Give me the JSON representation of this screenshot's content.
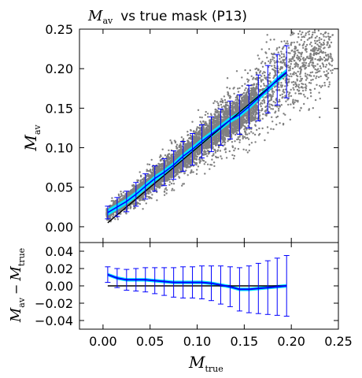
{
  "chart_data": [
    {
      "type": "scatter",
      "title": {
        "symbol": "M",
        "subscript": "av",
        "text": "vs true mask (P13)"
      },
      "xlabel": "",
      "ylabel": {
        "symbol": "M",
        "subscript": "av"
      },
      "xlim": [
        -0.025,
        0.25
      ],
      "ylim": [
        -0.02,
        0.25
      ],
      "xticks": [
        0.0,
        0.05,
        0.1,
        0.15,
        0.2,
        0.25
      ],
      "yticks": [
        0.0,
        0.05,
        0.1,
        0.15,
        0.2,
        0.25
      ],
      "ytick_labels": [
        "0.00",
        "0.05",
        "0.10",
        "0.15",
        "0.20",
        "0.25"
      ],
      "grid": false,
      "colors": {
        "scatter": "#808080",
        "mean_band": "#00e5ff",
        "mean_line": "#0000ff",
        "identity": "#000000",
        "errorbar": "#0000ff"
      },
      "series": [
        {
          "x": [
            0.005,
            0.015,
            0.025,
            0.035,
            0.045,
            0.055,
            0.065,
            0.075,
            0.085,
            0.095,
            0.105,
            0.115,
            0.125,
            0.135,
            0.145,
            0.155,
            0.165,
            0.175,
            0.185,
            0.195
          ],
          "y": [
            0.018,
            0.025,
            0.032,
            0.041,
            0.051,
            0.061,
            0.069,
            0.078,
            0.089,
            0.098,
            0.108,
            0.117,
            0.126,
            0.135,
            0.142,
            0.152,
            0.163,
            0.174,
            0.186,
            0.196
          ],
          "yerr": [
            0.008,
            0.012,
            0.013,
            0.015,
            0.016,
            0.016,
            0.017,
            0.018,
            0.019,
            0.02,
            0.021,
            0.022,
            0.023,
            0.024,
            0.025,
            0.027,
            0.029,
            0.03,
            0.032,
            0.033
          ]
        }
      ]
    },
    {
      "type": "line",
      "xlabel": {
        "symbol": "M",
        "subscript": "true"
      },
      "ylabel": {
        "symbol_a": "M",
        "subscript_a": "av",
        "operator": "−",
        "symbol_b": "M",
        "subscript_b": "true"
      },
      "xlim": [
        -0.025,
        0.25
      ],
      "ylim": [
        -0.05,
        0.05
      ],
      "xticks": [
        0.0,
        0.05,
        0.1,
        0.15,
        0.2,
        0.25
      ],
      "xtick_labels": [
        "0.00",
        "0.05",
        "0.10",
        "0.15",
        "0.20",
        "0.25"
      ],
      "yticks": [
        -0.04,
        -0.02,
        0.0,
        0.02,
        0.04
      ],
      "ytick_labels": [
        "−0.04",
        "−0.02",
        "0.00",
        "0.02",
        "0.04"
      ],
      "grid": false,
      "series": [
        {
          "x": [
            0.005,
            0.015,
            0.025,
            0.035,
            0.045,
            0.055,
            0.065,
            0.075,
            0.085,
            0.095,
            0.105,
            0.115,
            0.125,
            0.135,
            0.145,
            0.155,
            0.165,
            0.175,
            0.185,
            0.195
          ],
          "y": [
            0.013,
            0.009,
            0.007,
            0.007,
            0.007,
            0.006,
            0.005,
            0.004,
            0.004,
            0.004,
            0.004,
            0.003,
            0.001,
            -0.001,
            -0.004,
            -0.004,
            -0.003,
            -0.002,
            -0.001,
            0.0
          ],
          "yerr": [
            0.009,
            0.011,
            0.012,
            0.013,
            0.014,
            0.015,
            0.016,
            0.017,
            0.018,
            0.018,
            0.019,
            0.02,
            0.022,
            0.023,
            0.025,
            0.027,
            0.029,
            0.031,
            0.033,
            0.035
          ]
        }
      ]
    }
  ]
}
